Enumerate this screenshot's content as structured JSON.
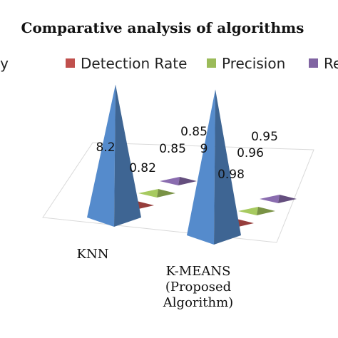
{
  "chart_data": {
    "type": "bar",
    "style": "3d-pyramid",
    "title": "Comparative analysis of algorithms",
    "legend_position": "top",
    "categories": [
      [
        "KNN"
      ],
      [
        "K-MEANS",
        "(Proposed",
        "Algorithm)"
      ]
    ],
    "series": [
      {
        "name": "Accuracy",
        "display": "curacy",
        "color": "#4f81bd",
        "values": [
          8.2,
          9
        ]
      },
      {
        "name": "Detection Rate",
        "color": "#c0504d",
        "values": [
          0.82,
          0.98
        ]
      },
      {
        "name": "Precision",
        "color": "#9bbb59",
        "values": [
          0.85,
          0.96
        ]
      },
      {
        "name": "Re",
        "color": "#8064a2",
        "values": [
          0.85,
          0.95
        ]
      }
    ],
    "value_labels": [
      [
        "8.2",
        "0.82",
        "0.85",
        "0.85"
      ],
      [
        "9",
        "0.98",
        "0.96",
        "0.95"
      ]
    ],
    "ylim": [
      0,
      9.5
    ],
    "grid": false
  }
}
